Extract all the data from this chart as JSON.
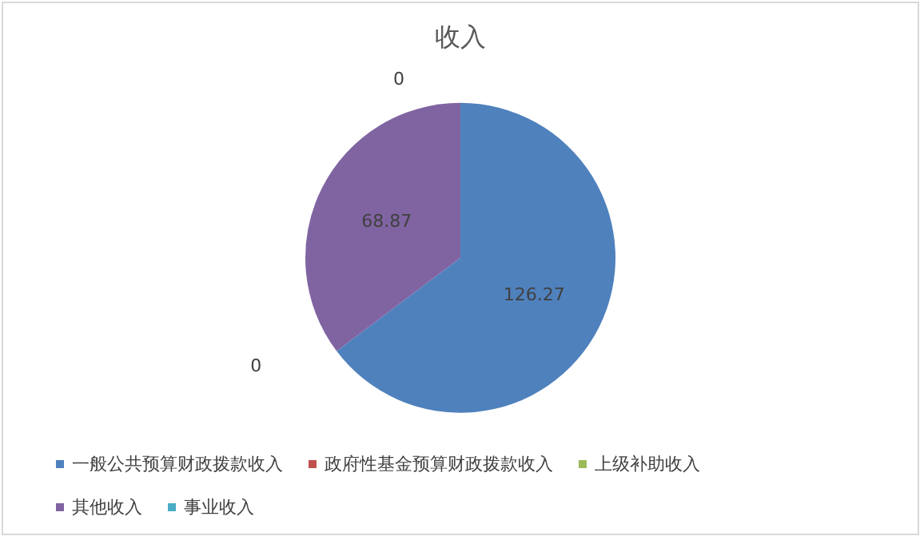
{
  "chart_data": {
    "type": "pie",
    "title": "收入",
    "categories": [
      "一般公共预算财政拨款收入",
      "政府性基金预算财政拨款收入",
      "上级补助收入",
      "其他收入",
      "事业收入"
    ],
    "values": [
      126.27,
      0,
      0,
      68.87,
      0
    ],
    "colors": [
      "#4f81bd",
      "#c0504d",
      "#9bbb59",
      "#8064a2",
      "#4bacc6"
    ],
    "value_labels": [
      "126.27",
      "0",
      null,
      "68.87",
      "0"
    ],
    "legend": "bottom"
  }
}
